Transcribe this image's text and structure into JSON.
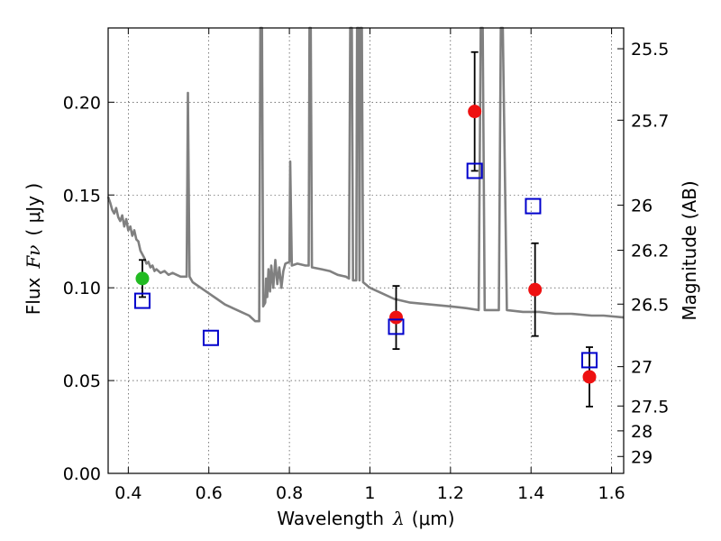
{
  "chart_data": {
    "type": "scatter",
    "title": "",
    "xlabel_prefix": "Wavelength",
    "xlabel_symbol": "λ",
    "xlabel_unit": "(μm)",
    "ylabel_prefix": "Flux",
    "ylabel_symbol": "Fν",
    "ylabel_unit": "( μJy )",
    "y2label": "Magnitude (AB)",
    "xlim": [
      0.35,
      1.63
    ],
    "ylim": [
      0.0,
      0.24
    ],
    "grid": true,
    "x_ticks": [
      0.4,
      0.6,
      0.8,
      1.0,
      1.2,
      1.4,
      1.6
    ],
    "x_tick_labels": [
      "0.4",
      "0.6",
      "0.8",
      "1",
      "1.2",
      "1.4",
      "1.6"
    ],
    "y_ticks": [
      0.0,
      0.05,
      0.1,
      0.15,
      0.2
    ],
    "y_tick_labels": [
      "0.00",
      "0.05",
      "0.10",
      "0.15",
      "0.20"
    ],
    "mag_ticks": [
      {
        "label": "25.5",
        "flux": 0.2288
      },
      {
        "label": "25.7",
        "flux": 0.1903
      },
      {
        "label": "26",
        "flux": 0.1445
      },
      {
        "label": "26.2",
        "flux": 0.1202
      },
      {
        "label": "26.5",
        "flux": 0.0912
      },
      {
        "label": "27",
        "flux": 0.0575
      },
      {
        "label": "27.5",
        "flux": 0.0363
      },
      {
        "label": "28",
        "flux": 0.0229
      },
      {
        "label": "29",
        "flux": 0.0091
      }
    ],
    "observed": [
      {
        "x": 0.435,
        "y": 0.105,
        "err": 0.01,
        "color": "#22bb22"
      },
      {
        "x": 1.065,
        "y": 0.084,
        "err": 0.017,
        "color": "#ee1111"
      },
      {
        "x": 1.26,
        "y": 0.195,
        "err": 0.032,
        "color": "#ee1111"
      },
      {
        "x": 1.41,
        "y": 0.099,
        "err": 0.025,
        "color": "#ee1111"
      },
      {
        "x": 1.545,
        "y": 0.052,
        "err": 0.016,
        "color": "#ee1111"
      }
    ],
    "model_photometry": [
      {
        "x": 0.435,
        "y": 0.093
      },
      {
        "x": 0.605,
        "y": 0.073
      },
      {
        "x": 1.065,
        "y": 0.079
      },
      {
        "x": 1.26,
        "y": 0.163
      },
      {
        "x": 1.405,
        "y": 0.144
      },
      {
        "x": 1.545,
        "y": 0.061
      }
    ],
    "spectrum_color": "#808080",
    "model_color": "#0000cc",
    "spectrum": [
      [
        0.35,
        0.149
      ],
      [
        0.355,
        0.146
      ],
      [
        0.36,
        0.142
      ],
      [
        0.365,
        0.14
      ],
      [
        0.37,
        0.143
      ],
      [
        0.375,
        0.138
      ],
      [
        0.38,
        0.136
      ],
      [
        0.385,
        0.139
      ],
      [
        0.39,
        0.133
      ],
      [
        0.395,
        0.137
      ],
      [
        0.4,
        0.131
      ],
      [
        0.405,
        0.133
      ],
      [
        0.41,
        0.128
      ],
      [
        0.415,
        0.131
      ],
      [
        0.42,
        0.126
      ],
      [
        0.425,
        0.125
      ],
      [
        0.43,
        0.12
      ],
      [
        0.435,
        0.118
      ],
      [
        0.44,
        0.116
      ],
      [
        0.445,
        0.113
      ],
      [
        0.45,
        0.114
      ],
      [
        0.455,
        0.111
      ],
      [
        0.46,
        0.112
      ],
      [
        0.465,
        0.109
      ],
      [
        0.47,
        0.11
      ],
      [
        0.48,
        0.108
      ],
      [
        0.49,
        0.109
      ],
      [
        0.5,
        0.107
      ],
      [
        0.51,
        0.108
      ],
      [
        0.52,
        0.107
      ],
      [
        0.53,
        0.106
      ],
      [
        0.54,
        0.106
      ],
      [
        0.545,
        0.106
      ],
      [
        0.548,
        0.205
      ],
      [
        0.552,
        0.106
      ],
      [
        0.56,
        0.103
      ],
      [
        0.58,
        0.1
      ],
      [
        0.6,
        0.097
      ],
      [
        0.62,
        0.094
      ],
      [
        0.64,
        0.091
      ],
      [
        0.66,
        0.089
      ],
      [
        0.68,
        0.087
      ],
      [
        0.7,
        0.085
      ],
      [
        0.715,
        0.082
      ],
      [
        0.725,
        0.082
      ],
      [
        0.728,
        0.24
      ],
      [
        0.732,
        0.24
      ],
      [
        0.735,
        0.09
      ],
      [
        0.74,
        0.092
      ],
      [
        0.742,
        0.105
      ],
      [
        0.745,
        0.095
      ],
      [
        0.748,
        0.11
      ],
      [
        0.752,
        0.098
      ],
      [
        0.755,
        0.112
      ],
      [
        0.76,
        0.1
      ],
      [
        0.765,
        0.115
      ],
      [
        0.77,
        0.102
      ],
      [
        0.775,
        0.111
      ],
      [
        0.78,
        0.1
      ],
      [
        0.785,
        0.109
      ],
      [
        0.79,
        0.113
      ],
      [
        0.8,
        0.114
      ],
      [
        0.802,
        0.168
      ],
      [
        0.806,
        0.112
      ],
      [
        0.82,
        0.113
      ],
      [
        0.84,
        0.112
      ],
      [
        0.848,
        0.112
      ],
      [
        0.85,
        0.24
      ],
      [
        0.853,
        0.24
      ],
      [
        0.856,
        0.111
      ],
      [
        0.88,
        0.11
      ],
      [
        0.9,
        0.109
      ],
      [
        0.92,
        0.107
      ],
      [
        0.94,
        0.106
      ],
      [
        0.948,
        0.105
      ],
      [
        0.951,
        0.24
      ],
      [
        0.955,
        0.24
      ],
      [
        0.958,
        0.104
      ],
      [
        0.966,
        0.104
      ],
      [
        0.968,
        0.24
      ],
      [
        0.972,
        0.24
      ],
      [
        0.974,
        0.104
      ],
      [
        0.976,
        0.24
      ],
      [
        0.98,
        0.24
      ],
      [
        0.983,
        0.103
      ],
      [
        1.0,
        0.1
      ],
      [
        1.03,
        0.097
      ],
      [
        1.06,
        0.094
      ],
      [
        1.1,
        0.092
      ],
      [
        1.15,
        0.091
      ],
      [
        1.2,
        0.09
      ],
      [
        1.24,
        0.089
      ],
      [
        1.27,
        0.088
      ],
      [
        1.275,
        0.24
      ],
      [
        1.28,
        0.24
      ],
      [
        1.285,
        0.088
      ],
      [
        1.32,
        0.088
      ],
      [
        1.325,
        0.24
      ],
      [
        1.33,
        0.24
      ],
      [
        1.34,
        0.088
      ],
      [
        1.38,
        0.087
      ],
      [
        1.42,
        0.087
      ],
      [
        1.46,
        0.086
      ],
      [
        1.5,
        0.086
      ],
      [
        1.55,
        0.085
      ],
      [
        1.58,
        0.085
      ],
      [
        1.63,
        0.084
      ]
    ]
  }
}
